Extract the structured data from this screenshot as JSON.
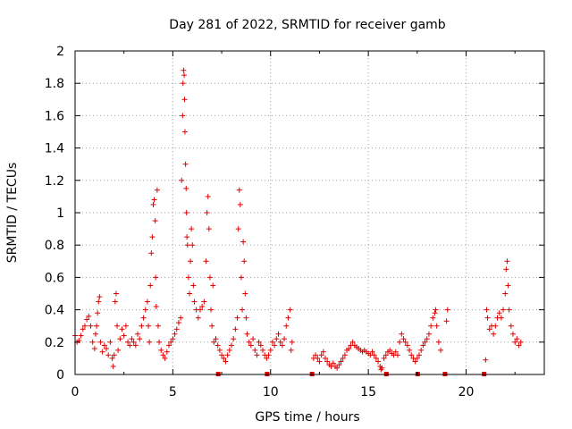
{
  "chart_data": {
    "type": "scatter",
    "title": "Day 281 of 2022, SRMTID for receiver gamb",
    "xlabel": "GPS time / hours",
    "ylabel": "SRMTID / TECUs",
    "xlim": [
      0,
      24
    ],
    "ylim": [
      0,
      2
    ],
    "xticks": [
      0,
      5,
      10,
      15,
      20
    ],
    "yticks": [
      0,
      0.2,
      0.4,
      0.6,
      0.8,
      1,
      1.2,
      1.4,
      1.6,
      1.8,
      2
    ],
    "grid": true,
    "series": [
      {
        "name": "SRMTID",
        "color": "#e00000",
        "marker": "+",
        "points": [
          [
            0.0,
            0.24
          ],
          [
            0.1,
            0.2
          ],
          [
            0.2,
            0.21
          ],
          [
            0.3,
            0.24
          ],
          [
            0.4,
            0.28
          ],
          [
            0.5,
            0.3
          ],
          [
            0.6,
            0.34
          ],
          [
            0.7,
            0.36
          ],
          [
            0.8,
            0.3
          ],
          [
            0.9,
            0.2
          ],
          [
            1.0,
            0.16
          ],
          [
            1.05,
            0.25
          ],
          [
            1.1,
            0.3
          ],
          [
            1.15,
            0.38
          ],
          [
            1.2,
            0.45
          ],
          [
            1.25,
            0.48
          ],
          [
            1.3,
            0.2
          ],
          [
            1.4,
            0.14
          ],
          [
            1.5,
            0.18
          ],
          [
            1.6,
            0.16
          ],
          [
            1.7,
            0.12
          ],
          [
            1.8,
            0.2
          ],
          [
            1.9,
            0.1
          ],
          [
            1.95,
            0.05
          ],
          [
            2.0,
            0.12
          ],
          [
            2.05,
            0.45
          ],
          [
            2.1,
            0.5
          ],
          [
            2.15,
            0.3
          ],
          [
            2.2,
            0.15
          ],
          [
            2.3,
            0.22
          ],
          [
            2.4,
            0.28
          ],
          [
            2.5,
            0.24
          ],
          [
            2.6,
            0.3
          ],
          [
            2.7,
            0.2
          ],
          [
            2.8,
            0.18
          ],
          [
            2.9,
            0.22
          ],
          [
            3.0,
            0.2
          ],
          [
            3.1,
            0.18
          ],
          [
            3.2,
            0.25
          ],
          [
            3.3,
            0.22
          ],
          [
            3.4,
            0.3
          ],
          [
            3.5,
            0.35
          ],
          [
            3.6,
            0.4
          ],
          [
            3.7,
            0.45
          ],
          [
            3.75,
            0.3
          ],
          [
            3.8,
            0.2
          ],
          [
            3.85,
            0.55
          ],
          [
            3.9,
            0.75
          ],
          [
            3.95,
            0.85
          ],
          [
            4.0,
            1.05
          ],
          [
            4.05,
            1.08
          ],
          [
            4.1,
            0.95
          ],
          [
            4.12,
            0.6
          ],
          [
            4.15,
            0.42
          ],
          [
            4.2,
            1.14
          ],
          [
            4.25,
            0.3
          ],
          [
            4.3,
            0.2
          ],
          [
            4.4,
            0.15
          ],
          [
            4.5,
            0.12
          ],
          [
            4.6,
            0.1
          ],
          [
            4.7,
            0.14
          ],
          [
            4.8,
            0.18
          ],
          [
            4.9,
            0.2
          ],
          [
            5.0,
            0.22
          ],
          [
            5.1,
            0.25
          ],
          [
            5.2,
            0.28
          ],
          [
            5.3,
            0.32
          ],
          [
            5.4,
            0.35
          ],
          [
            5.45,
            1.2
          ],
          [
            5.5,
            1.6
          ],
          [
            5.52,
            1.8
          ],
          [
            5.55,
            1.88
          ],
          [
            5.58,
            1.85
          ],
          [
            5.6,
            1.7
          ],
          [
            5.62,
            1.5
          ],
          [
            5.65,
            1.3
          ],
          [
            5.68,
            1.15
          ],
          [
            5.7,
            1.0
          ],
          [
            5.72,
            0.85
          ],
          [
            5.75,
            0.8
          ],
          [
            5.8,
            0.6
          ],
          [
            5.85,
            0.5
          ],
          [
            5.9,
            0.7
          ],
          [
            5.95,
            0.9
          ],
          [
            6.0,
            0.8
          ],
          [
            6.05,
            0.55
          ],
          [
            6.1,
            0.45
          ],
          [
            6.2,
            0.4
          ],
          [
            6.3,
            0.35
          ],
          [
            6.4,
            0.4
          ],
          [
            6.5,
            0.42
          ],
          [
            6.6,
            0.45
          ],
          [
            6.7,
            0.7
          ],
          [
            6.75,
            1.0
          ],
          [
            6.8,
            1.1
          ],
          [
            6.85,
            0.9
          ],
          [
            6.9,
            0.6
          ],
          [
            6.95,
            0.4
          ],
          [
            7.0,
            0.3
          ],
          [
            7.05,
            0.55
          ],
          [
            7.1,
            0.2
          ],
          [
            7.2,
            0.22
          ],
          [
            7.3,
            0.18
          ],
          [
            7.4,
            0.15
          ],
          [
            7.5,
            0.12
          ],
          [
            7.6,
            0.1
          ],
          [
            7.7,
            0.08
          ],
          [
            7.8,
            0.12
          ],
          [
            7.9,
            0.15
          ],
          [
            8.0,
            0.18
          ],
          [
            8.1,
            0.22
          ],
          [
            8.2,
            0.28
          ],
          [
            8.3,
            0.35
          ],
          [
            8.35,
            0.9
          ],
          [
            8.4,
            1.14
          ],
          [
            8.45,
            1.05
          ],
          [
            8.5,
            0.6
          ],
          [
            8.55,
            0.4
          ],
          [
            8.6,
            0.82
          ],
          [
            8.65,
            0.7
          ],
          [
            8.7,
            0.5
          ],
          [
            8.75,
            0.35
          ],
          [
            8.8,
            0.25
          ],
          [
            8.9,
            0.2
          ],
          [
            9.0,
            0.18
          ],
          [
            9.1,
            0.22
          ],
          [
            9.2,
            0.15
          ],
          [
            9.3,
            0.12
          ],
          [
            9.4,
            0.2
          ],
          [
            9.5,
            0.18
          ],
          [
            9.6,
            0.15
          ],
          [
            9.7,
            0.12
          ],
          [
            9.8,
            0.1
          ],
          [
            9.9,
            0.12
          ],
          [
            10.0,
            0.15
          ],
          [
            10.1,
            0.2
          ],
          [
            10.2,
            0.18
          ],
          [
            10.3,
            0.22
          ],
          [
            10.4,
            0.25
          ],
          [
            10.5,
            0.2
          ],
          [
            10.6,
            0.18
          ],
          [
            10.7,
            0.22
          ],
          [
            10.8,
            0.3
          ],
          [
            10.9,
            0.35
          ],
          [
            11.0,
            0.4
          ],
          [
            11.05,
            0.15
          ],
          [
            11.1,
            0.2
          ],
          [
            12.2,
            0.1
          ],
          [
            12.3,
            0.12
          ],
          [
            12.4,
            0.1
          ],
          [
            12.5,
            0.08
          ],
          [
            12.6,
            0.12
          ],
          [
            12.7,
            0.14
          ],
          [
            12.8,
            0.1
          ],
          [
            12.9,
            0.08
          ],
          [
            13.0,
            0.06
          ],
          [
            13.1,
            0.05
          ],
          [
            13.2,
            0.07
          ],
          [
            13.3,
            0.05
          ],
          [
            13.4,
            0.04
          ],
          [
            13.5,
            0.06
          ],
          [
            13.6,
            0.08
          ],
          [
            13.7,
            0.1
          ],
          [
            13.8,
            0.12
          ],
          [
            13.9,
            0.15
          ],
          [
            14.0,
            0.16
          ],
          [
            14.1,
            0.18
          ],
          [
            14.2,
            0.2
          ],
          [
            14.3,
            0.18
          ],
          [
            14.4,
            0.17
          ],
          [
            14.5,
            0.16
          ],
          [
            14.6,
            0.15
          ],
          [
            14.7,
            0.14
          ],
          [
            14.8,
            0.15
          ],
          [
            14.9,
            0.14
          ],
          [
            15.0,
            0.13
          ],
          [
            15.1,
            0.12
          ],
          [
            15.2,
            0.14
          ],
          [
            15.3,
            0.12
          ],
          [
            15.4,
            0.1
          ],
          [
            15.5,
            0.08
          ],
          [
            15.6,
            0.05
          ],
          [
            15.65,
            0.03
          ],
          [
            15.7,
            0.04
          ],
          [
            15.8,
            0.1
          ],
          [
            15.9,
            0.12
          ],
          [
            16.0,
            0.14
          ],
          [
            16.1,
            0.15
          ],
          [
            16.2,
            0.13
          ],
          [
            16.3,
            0.12
          ],
          [
            16.4,
            0.14
          ],
          [
            16.5,
            0.12
          ],
          [
            16.6,
            0.2
          ],
          [
            16.7,
            0.25
          ],
          [
            16.8,
            0.22
          ],
          [
            16.9,
            0.2
          ],
          [
            17.0,
            0.18
          ],
          [
            17.1,
            0.15
          ],
          [
            17.2,
            0.12
          ],
          [
            17.3,
            0.1
          ],
          [
            17.4,
            0.08
          ],
          [
            17.5,
            0.1
          ],
          [
            17.6,
            0.12
          ],
          [
            17.7,
            0.15
          ],
          [
            17.8,
            0.18
          ],
          [
            17.9,
            0.2
          ],
          [
            18.0,
            0.22
          ],
          [
            18.1,
            0.25
          ],
          [
            18.2,
            0.3
          ],
          [
            18.3,
            0.35
          ],
          [
            18.4,
            0.38
          ],
          [
            18.45,
            0.4
          ],
          [
            18.5,
            0.3
          ],
          [
            18.6,
            0.2
          ],
          [
            18.7,
            0.15
          ],
          [
            19.0,
            0.33
          ],
          [
            19.05,
            0.4
          ],
          [
            21.0,
            0.09
          ],
          [
            21.05,
            0.4
          ],
          [
            21.1,
            0.35
          ],
          [
            21.2,
            0.28
          ],
          [
            21.3,
            0.3
          ],
          [
            21.4,
            0.25
          ],
          [
            21.5,
            0.3
          ],
          [
            21.6,
            0.35
          ],
          [
            21.7,
            0.38
          ],
          [
            21.8,
            0.35
          ],
          [
            21.9,
            0.4
          ],
          [
            22.0,
            0.5
          ],
          [
            22.05,
            0.65
          ],
          [
            22.1,
            0.7
          ],
          [
            22.15,
            0.55
          ],
          [
            22.2,
            0.4
          ],
          [
            22.3,
            0.3
          ],
          [
            22.4,
            0.25
          ],
          [
            22.5,
            0.2
          ],
          [
            22.6,
            0.22
          ],
          [
            22.7,
            0.18
          ],
          [
            22.8,
            0.2
          ]
        ]
      }
    ],
    "gap_markers_x": [
      7.3,
      9.8,
      12.1,
      15.9,
      17.5,
      18.9,
      20.9
    ]
  }
}
